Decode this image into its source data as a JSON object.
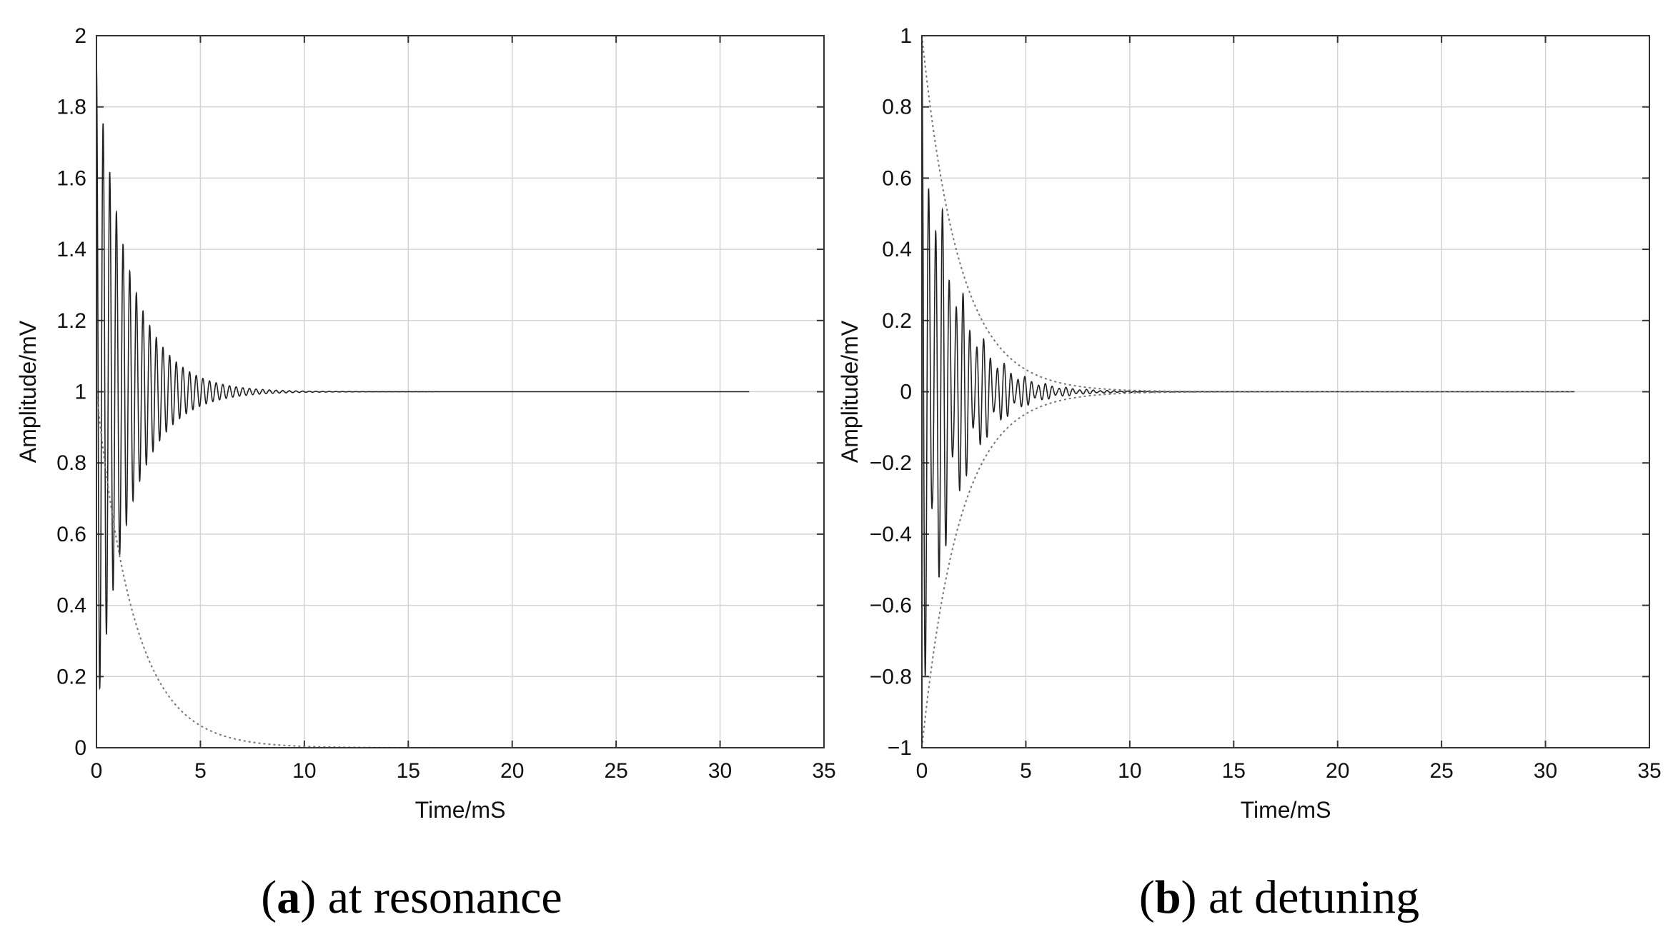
{
  "chart_data": [
    {
      "type": "line",
      "caption": {
        "letter": "a",
        "text": " at resonance",
        "open": "(",
        "close": ")"
      },
      "xlabel": "Time/mS",
      "ylabel": "Amplitude/mV",
      "xlim": [
        0,
        35
      ],
      "ylim": [
        0,
        2
      ],
      "xticks": [
        0,
        5,
        10,
        15,
        20,
        25,
        30,
        35
      ],
      "yticks": [
        0,
        0.2,
        0.4,
        0.6,
        0.8,
        1,
        1.2,
        1.4,
        1.6,
        1.8,
        2
      ],
      "ytick_labels": [
        "0",
        "0.2",
        "0.4",
        "0.6",
        "0.8",
        "1",
        "1.2",
        "1.4",
        "1.6",
        "1.8",
        "2"
      ],
      "grid": true,
      "series": [
        {
          "style": "solid",
          "model": "decaying oscillation about baseline",
          "baseline": 1.0,
          "initial_amplitude": 0.92,
          "decay_time_ms": 1.6,
          "period_ms": 0.32,
          "x_end": 31.4
        },
        {
          "style": "dotted",
          "model": "exponential decay",
          "initial_value": 1.0,
          "decay_time_ms": 1.8,
          "x_end": 31.4
        }
      ]
    },
    {
      "type": "line",
      "caption": {
        "letter": "b",
        "text": " at detuning",
        "open": "(",
        "close": ")"
      },
      "xlabel": "Time/mS",
      "ylabel": "Amplitude/mV",
      "xlim": [
        0,
        35
      ],
      "ylim": [
        -1,
        1
      ],
      "xticks": [
        0,
        5,
        10,
        15,
        20,
        25,
        30,
        35
      ],
      "yticks": [
        -1,
        -0.8,
        -0.6,
        -0.4,
        -0.2,
        0,
        0.2,
        0.4,
        0.6,
        0.8,
        1
      ],
      "ytick_labels": [
        "−1",
        "−0.8",
        "−0.6",
        "−0.4",
        "−0.2",
        "0",
        "0.2",
        "0.4",
        "0.6",
        "0.8",
        "1"
      ],
      "grid": true,
      "series": [
        {
          "style": "solid",
          "model": "decaying beating oscillation",
          "baseline": 0,
          "initial_amplitude": 0.95,
          "decay_time_ms": 1.6,
          "period_ms": 0.33,
          "beat_period_ms": 1.0,
          "x_end": 31.4
        },
        {
          "style": "dotted",
          "model": "symmetric exponential envelope",
          "initial_value": 1.0,
          "decay_time_ms": 1.8,
          "x_end": 31.4
        }
      ]
    }
  ]
}
